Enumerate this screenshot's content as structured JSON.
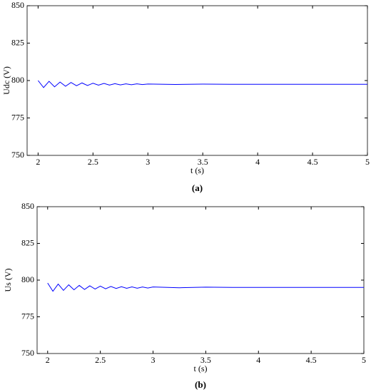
{
  "chart_data": [
    {
      "type": "line",
      "caption": "(a)",
      "xlabel": "t (s)",
      "ylabel": "Udc (V)",
      "xlim": [
        1.9,
        5
      ],
      "ylim": [
        750,
        850
      ],
      "xticks": [
        2,
        2.5,
        3,
        3.5,
        4,
        4.5,
        5
      ],
      "yticks": [
        750,
        775,
        800,
        825,
        850
      ],
      "grid": false,
      "x": [
        2,
        2.05,
        2.1,
        2.15,
        2.2,
        2.25,
        2.3,
        2.35,
        2.4,
        2.45,
        2.5,
        2.55,
        2.6,
        2.65,
        2.7,
        2.75,
        2.8,
        2.85,
        2.9,
        2.95,
        3,
        3.25,
        3.5,
        3.75,
        4,
        4.25,
        4.5,
        4.75,
        5
      ],
      "series": [
        {
          "color": "#0000ff",
          "values": [
            800,
            795.3,
            799.5,
            795.8,
            799.0,
            796.2,
            798.7,
            796.5,
            798.4,
            796.7,
            798.2,
            796.9,
            798.1,
            797.0,
            797.9,
            797.1,
            797.8,
            797.2,
            797.8,
            797.3,
            797.7,
            797.4,
            797.6,
            797.5,
            797.5,
            797.5,
            797.5,
            797.5,
            797.5
          ]
        }
      ]
    },
    {
      "type": "line",
      "caption": "(b)",
      "xlabel": "t (s)",
      "ylabel": "Us (V)",
      "xlim": [
        1.9,
        5
      ],
      "ylim": [
        750,
        850
      ],
      "xticks": [
        2,
        2.5,
        3,
        3.5,
        4,
        4.5,
        5
      ],
      "yticks": [
        750,
        775,
        800,
        825,
        850
      ],
      "grid": false,
      "x": [
        2,
        2.05,
        2.1,
        2.15,
        2.2,
        2.25,
        2.3,
        2.35,
        2.4,
        2.45,
        2.5,
        2.55,
        2.6,
        2.65,
        2.7,
        2.75,
        2.8,
        2.85,
        2.9,
        2.95,
        3,
        3.25,
        3.5,
        3.75,
        4,
        4.25,
        4.5,
        4.75,
        5
      ],
      "series": [
        {
          "color": "#0000ff",
          "values": [
            798,
            792.4,
            797.3,
            793.0,
            796.8,
            793.4,
            796.4,
            793.6,
            796.1,
            793.9,
            795.9,
            794.1,
            795.7,
            794.3,
            795.5,
            794.4,
            795.4,
            794.5,
            795.3,
            794.6,
            795.3,
            794.8,
            795.2,
            795,
            795,
            795,
            795,
            795,
            795
          ]
        }
      ]
    }
  ]
}
